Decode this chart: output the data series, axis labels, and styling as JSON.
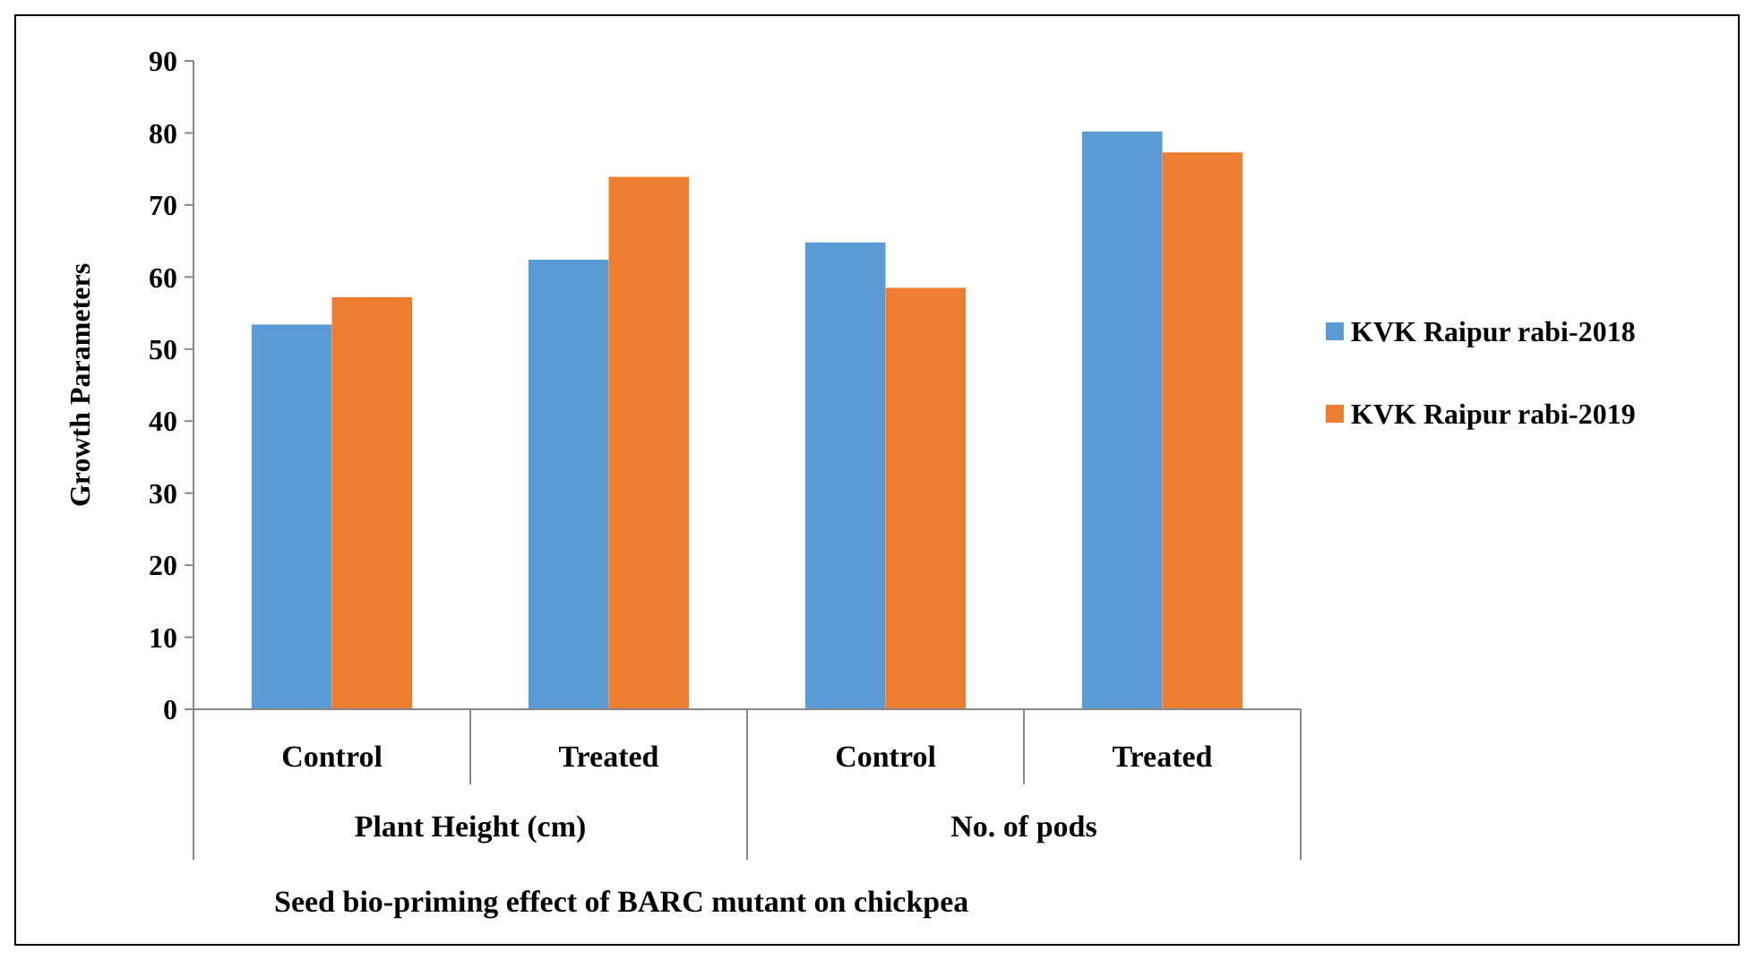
{
  "chart_data": {
    "type": "bar",
    "xlabel": "Seed bio-priming  effect of BARC mutant on chickpea",
    "ylabel": "Growth Parameters",
    "categories": [
      "Control",
      "Treated",
      "Control",
      "Treated"
    ],
    "annotations": [
      "Plant Height (cm)",
      "No. of pods"
    ],
    "series": [
      {
        "name": "KVK Raipur rabi-2018",
        "color": "#5b9bd5",
        "values": [
          53.4,
          62.4,
          64.8,
          80.2
        ]
      },
      {
        "name": "KVK Raipur rabi-2019",
        "color": "#ed7d31",
        "values": [
          57.2,
          73.9,
          58.5,
          77.3
        ]
      }
    ],
    "ylim": [
      0,
      90
    ],
    "yticks": [
      0,
      10,
      20,
      30,
      40,
      50,
      60,
      70,
      80,
      90
    ],
    "grid": false,
    "legend": "right"
  }
}
